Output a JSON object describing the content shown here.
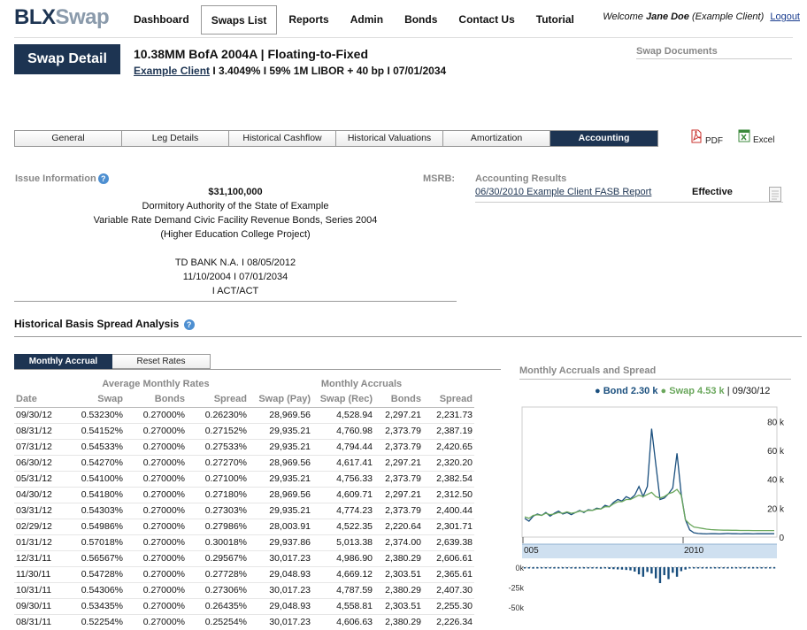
{
  "header": {
    "logo_part1": "BLX",
    "logo_part2": "Swap",
    "nav": [
      "Dashboard",
      "Swaps List",
      "Reports",
      "Admin",
      "Bonds",
      "Contact Us",
      "Tutorial"
    ],
    "welcome_prefix": "Welcome",
    "user_name": "Jane Doe",
    "user_role": "(Example Client)",
    "logout": "Logout"
  },
  "swap": {
    "detail_label": "Swap Detail",
    "title": "10.38MM BofA 2004A  |  Floating-to-Fixed",
    "client": "Example Client",
    "sub_rest": " I  3.4049%  I  59% 1M LIBOR + 40 bp  I  07/01/2034",
    "documents_label": "Swap Documents"
  },
  "tabs": [
    "General",
    "Leg Details",
    "Historical Cashflow",
    "Historical Valuations",
    "Amortization",
    "Accounting"
  ],
  "exports": {
    "pdf": "PDF",
    "excel": "Excel"
  },
  "issue": {
    "label": "Issue Information",
    "msrb_label": "MSRB:",
    "amount": "$31,100,000",
    "line1": "Dormitory Authority of the State of Example",
    "line2": "Variable Rate Demand Civic Facility Revenue Bonds, Series 2004",
    "line3": "(Higher Education College Project)",
    "line4": "TD BANK N.A. I 08/05/2012",
    "line5": "11/10/2004 I 07/01/2034",
    "line6": "I ACT/ACT"
  },
  "accounting": {
    "label": "Accounting Results",
    "report": "06/30/2010 Example Client FASB Report",
    "status": "Effective"
  },
  "analysis": {
    "title": "Historical Basis Spread Analysis",
    "subtabs": [
      "Monthly Accrual",
      "Reset Rates"
    ],
    "group_rates": "Average Monthly Rates",
    "group_accruals": "Monthly Accruals",
    "columns": [
      "Date",
      "Swap",
      "Bonds",
      "Spread",
      "Swap (Pay)",
      "Swap (Rec)",
      "Bonds",
      "Spread"
    ],
    "rows": [
      [
        "09/30/12",
        "0.53230%",
        "0.27000%",
        "0.26230%",
        "28,969.56",
        "4,528.94",
        "2,297.21",
        "2,231.73"
      ],
      [
        "08/31/12",
        "0.54152%",
        "0.27000%",
        "0.27152%",
        "29,935.21",
        "4,760.98",
        "2,373.79",
        "2,387.19"
      ],
      [
        "07/31/12",
        "0.54533%",
        "0.27000%",
        "0.27533%",
        "29,935.21",
        "4,794.44",
        "2,373.79",
        "2,420.65"
      ],
      [
        "06/30/12",
        "0.54270%",
        "0.27000%",
        "0.27270%",
        "28,969.56",
        "4,617.41",
        "2,297.21",
        "2,320.20"
      ],
      [
        "05/31/12",
        "0.54100%",
        "0.27000%",
        "0.27100%",
        "29,935.21",
        "4,756.33",
        "2,373.79",
        "2,382.54"
      ],
      [
        "04/30/12",
        "0.54180%",
        "0.27000%",
        "0.27180%",
        "28,969.56",
        "4,609.71",
        "2,297.21",
        "2,312.50"
      ],
      [
        "03/31/12",
        "0.54303%",
        "0.27000%",
        "0.27303%",
        "29,935.21",
        "4,774.23",
        "2,373.79",
        "2,400.44"
      ],
      [
        "02/29/12",
        "0.54986%",
        "0.27000%",
        "0.27986%",
        "28,003.91",
        "4,522.35",
        "2,220.64",
        "2,301.71"
      ],
      [
        "01/31/12",
        "0.57018%",
        "0.27000%",
        "0.30018%",
        "29,937.86",
        "5,013.38",
        "2,374.00",
        "2,639.38"
      ],
      [
        "12/31/11",
        "0.56567%",
        "0.27000%",
        "0.29567%",
        "30,017.23",
        "4,986.90",
        "2,380.29",
        "2,606.61"
      ],
      [
        "11/30/11",
        "0.54728%",
        "0.27000%",
        "0.27728%",
        "29,048.93",
        "4,669.12",
        "2,303.51",
        "2,365.61"
      ],
      [
        "10/31/11",
        "0.54306%",
        "0.27000%",
        "0.27306%",
        "30,017.23",
        "4,787.59",
        "2,380.29",
        "2,407.30"
      ],
      [
        "09/30/11",
        "0.53435%",
        "0.27000%",
        "0.26435%",
        "29,048.93",
        "4,558.81",
        "2,303.51",
        "2,255.30"
      ],
      [
        "08/31/11",
        "0.52254%",
        "0.27000%",
        "0.25254%",
        "30,017.23",
        "4,606.63",
        "2,380.29",
        "2,226.34"
      ]
    ]
  },
  "chart_data": {
    "type": "line",
    "title": "Monthly Accruals and Spread",
    "legend": [
      {
        "name": "Bond",
        "value": "2.30 k",
        "color": "#1a4f7e"
      },
      {
        "name": "Swap",
        "value": "4.53 k",
        "color": "#6aa75c"
      }
    ],
    "legend_date": "09/30/12",
    "y_ticks": [
      "80 k",
      "60 k",
      "40 k",
      "20 k",
      "0"
    ],
    "ylim": [
      0,
      90000
    ],
    "x_ticks": [
      "005",
      "2010"
    ],
    "series": [
      {
        "name": "Bond",
        "color": "#1a4f7e",
        "values": [
          13000,
          11000,
          14500,
          16000,
          15000,
          17000,
          14500,
          16500,
          18000,
          16000,
          17000,
          15500,
          17000,
          18500,
          17000,
          19000,
          18500,
          20000,
          19500,
          22000,
          21000,
          24000,
          26000,
          25000,
          28000,
          26500,
          29000,
          35000,
          28000,
          35000,
          75000,
          50000,
          26000,
          27000,
          30000,
          34000,
          58000,
          30000,
          12000,
          5000,
          3000,
          2500,
          2300,
          2200,
          2400,
          2300,
          2200,
          2300,
          2500,
          2300,
          2400,
          2200,
          2300,
          2300,
          2200,
          2400,
          2300,
          2300,
          2400,
          2300
        ]
      },
      {
        "name": "Swap",
        "color": "#6aa75c",
        "values": [
          14000,
          13000,
          15000,
          15500,
          15000,
          16500,
          15500,
          16000,
          17000,
          16500,
          17500,
          16500,
          17000,
          18000,
          17500,
          18500,
          18500,
          19500,
          19500,
          21000,
          21000,
          23000,
          24500,
          24500,
          26000,
          26000,
          27500,
          29000,
          28000,
          29500,
          31000,
          28000,
          27000,
          28000,
          30000,
          31000,
          33000,
          29000,
          12000,
          9000,
          7000,
          6500,
          6000,
          5500,
          5200,
          5000,
          4900,
          4800,
          4800,
          4700,
          4700,
          4600,
          4600,
          4600,
          4550,
          4550,
          4530,
          4530,
          4530,
          4530
        ]
      }
    ],
    "spread_ticks": [
      "0k",
      "-25k",
      "-50k"
    ],
    "spread_values": [
      -1500,
      -1200,
      -1800,
      -1300,
      -1600,
      -1400,
      -1500,
      -1700,
      -1300,
      -1500,
      -1600,
      -1400,
      -1800,
      -1500,
      -1300,
      -1700,
      -1600,
      -1500,
      -1900,
      -1400,
      -2200,
      -2500,
      -2800,
      -3000,
      -3500,
      -4000,
      -5500,
      -9000,
      -12000,
      -6000,
      -8000,
      -14000,
      -20000,
      -10000,
      -15000,
      -7000,
      -12000,
      -5000,
      -3000,
      -1500,
      -1000,
      -800,
      -700,
      -600,
      -600,
      -500,
      -500,
      -500,
      -500,
      -500,
      -500,
      -500,
      -500,
      -500,
      -500,
      -500,
      -500,
      -500,
      -500,
      -500
    ]
  }
}
